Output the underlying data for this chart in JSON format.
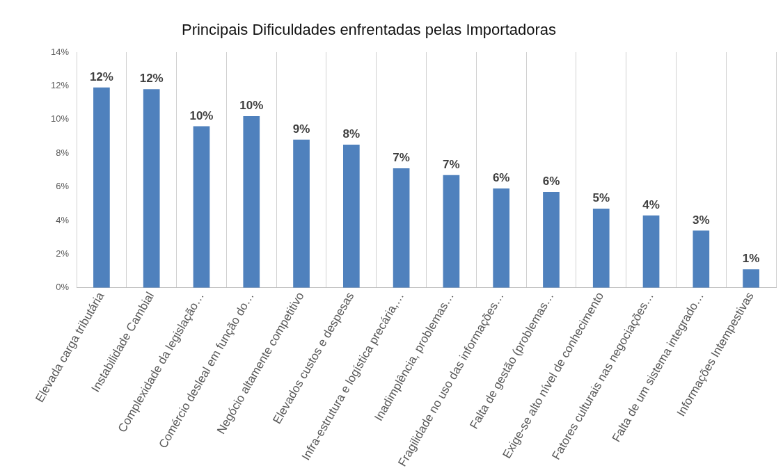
{
  "chart_data": {
    "type": "bar",
    "title": "Principais Dificuldades enfrentadas pelas Importadoras",
    "categories": [
      "Elevada carga tributária",
      "Instabilidade Cambial",
      "Complexidade da legislação…",
      "Comércio desleal em função do…",
      "Negócio altamente competitivo",
      "Elevados custos e despesas",
      "Infra-estrutura e logística precária,…",
      "Inadimplência, problemas…",
      "Fragilidade no uso das informações…",
      "Falta de gestão (problemas…",
      "Exige-se alto nível de conhecimento",
      "Fatores culturais nas negociações…",
      "Falta de um sistema integrado…",
      "Informações Intempestivas"
    ],
    "values": [
      11.9,
      11.8,
      9.6,
      10.2,
      8.8,
      8.5,
      7.1,
      6.7,
      5.9,
      5.7,
      4.7,
      4.3,
      3.4,
      1.1
    ],
    "value_labels": [
      "12%",
      "12%",
      "10%",
      "10%",
      "9%",
      "8%",
      "7%",
      "7%",
      "6%",
      "6%",
      "5%",
      "4%",
      "3%",
      "1%"
    ],
    "color": "#4f81bd",
    "ylim": [
      0,
      14
    ],
    "yticks": [
      {
        "value": 0,
        "label": "0%"
      },
      {
        "value": 2,
        "label": "2%"
      },
      {
        "value": 4,
        "label": "4%"
      },
      {
        "value": 6,
        "label": "6%"
      },
      {
        "value": 8,
        "label": "8%"
      },
      {
        "value": 10,
        "label": "10%"
      },
      {
        "value": 12,
        "label": "12%"
      },
      {
        "value": 14,
        "label": "14%"
      }
    ],
    "grid": "x"
  }
}
